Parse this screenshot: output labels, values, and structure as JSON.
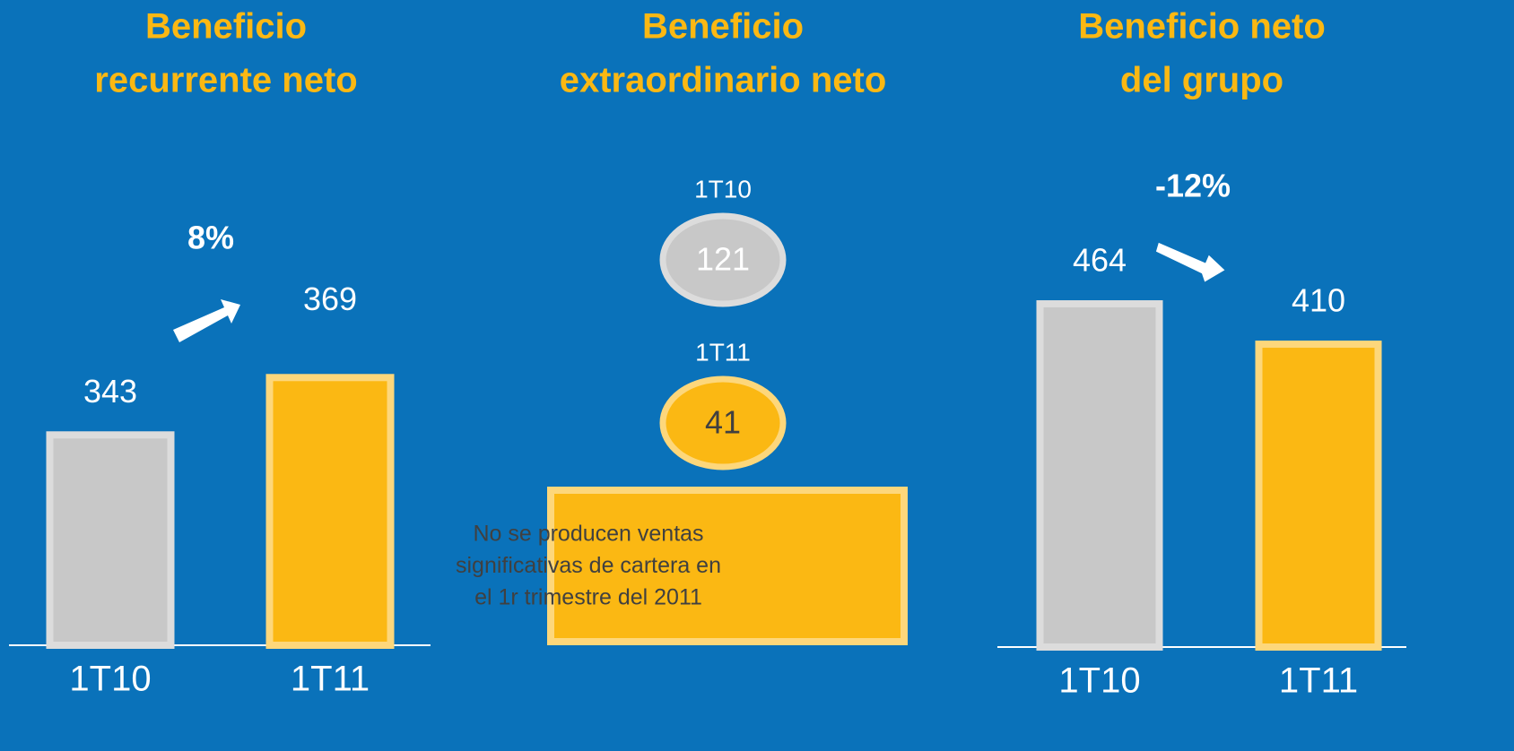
{
  "chart_data": [
    {
      "type": "bar",
      "title": [
        "Beneficio",
        "recurrente neto"
      ],
      "categories": [
        "1T10",
        "1T11"
      ],
      "values": [
        343,
        369
      ],
      "colors": [
        "#c8c8c8",
        "#fbb813"
      ],
      "ylim": [
        246,
        400
      ],
      "annotation": "8%"
    },
    {
      "type": "oval",
      "title": [
        "Beneficio",
        "extraordinario neto"
      ],
      "categories": [
        "1T10",
        "1T11"
      ],
      "values": [
        121,
        41
      ],
      "colors": [
        "#c8c8c8",
        "#fbb813"
      ],
      "note": [
        "No se producen ventas",
        "significativas de cartera en",
        "el 1r trimestre del 2011"
      ]
    },
    {
      "type": "bar",
      "title": [
        "Beneficio neto",
        "del grupo"
      ],
      "categories": [
        "1T10",
        "1T11"
      ],
      "values": [
        464,
        410
      ],
      "colors": [
        "#c8c8c8",
        "#fbb813"
      ],
      "ylim": [
        0,
        500
      ],
      "annotation": "-12%"
    }
  ]
}
